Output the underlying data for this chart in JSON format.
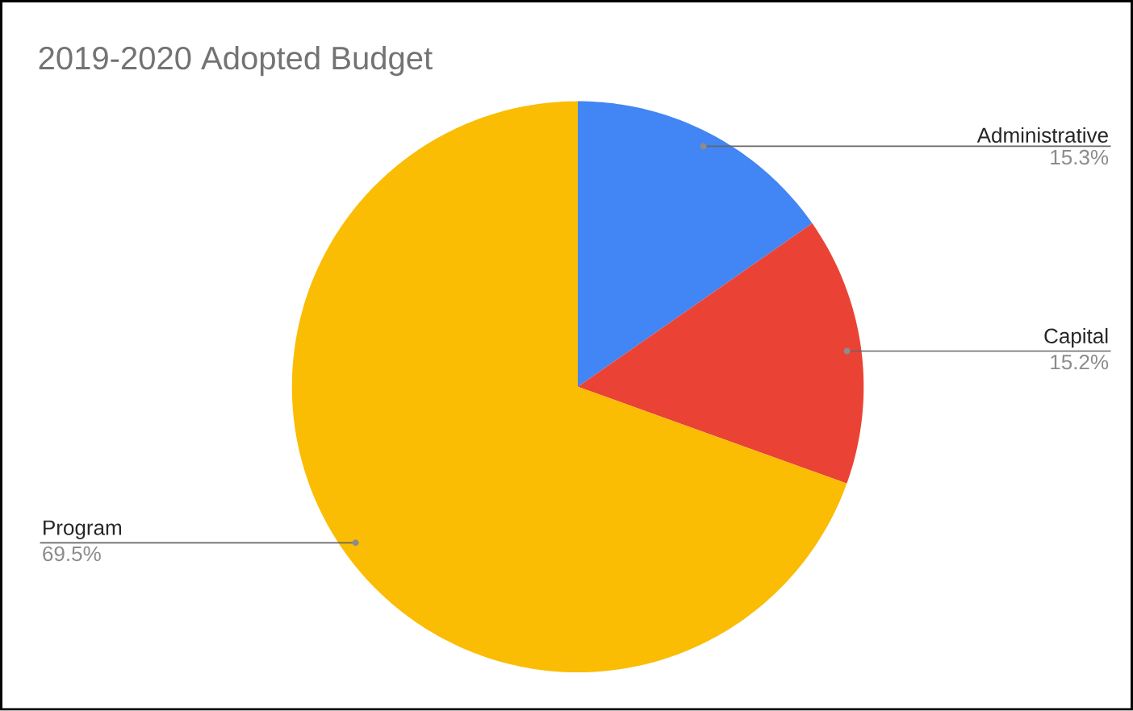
{
  "chart_data": {
    "type": "pie",
    "title": "2019-2020 Adopted Budget",
    "categories": [
      "Administrative",
      "Capital",
      "Program"
    ],
    "values": [
      15.3,
      15.2,
      69.5
    ],
    "colors": [
      "#4285f4",
      "#ea4335",
      "#fbbc04"
    ],
    "value_labels": [
      "15.3%",
      "15.2%",
      "69.5%"
    ]
  }
}
